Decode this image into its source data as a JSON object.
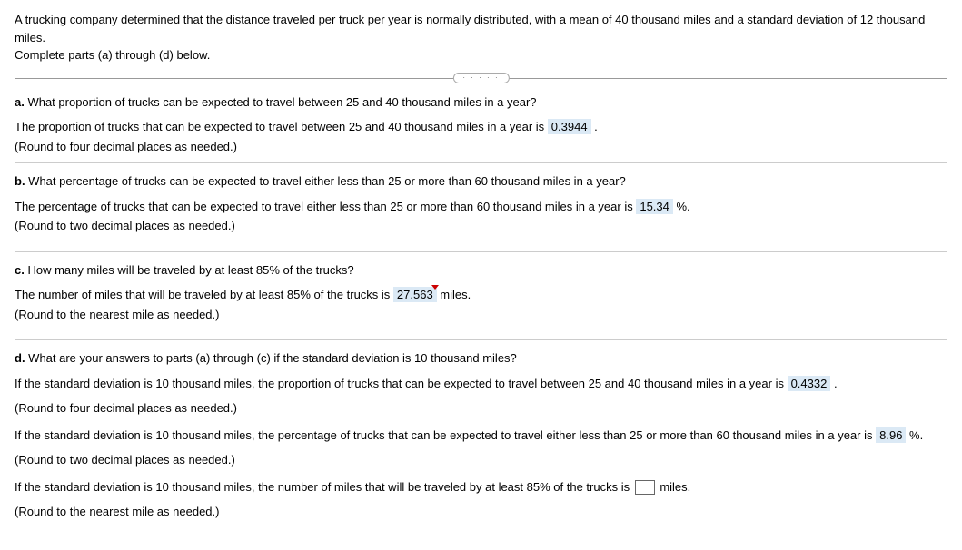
{
  "intro": {
    "line1": "A trucking company determined that the distance traveled per truck per year is normally distributed, with a mean of 40 thousand miles and a standard deviation of 12 thousand miles.",
    "line2": "Complete parts (a) through (d) below."
  },
  "divider": "· · · · ·",
  "a": {
    "label": "a.",
    "question": " What proportion of trucks can be expected to travel between 25 and 40 thousand miles in a year?",
    "answer_pre": "The proportion of trucks that can be expected to travel between 25 and 40 thousand miles in a year is ",
    "answer_val": "0.3944",
    "answer_post": " .",
    "note": "(Round to four decimal places as needed.)"
  },
  "b": {
    "label": "b.",
    "question": " What percentage of trucks can be expected to travel either less than 25 or more than 60 thousand miles in a year?",
    "answer_pre": "The percentage of trucks that can be expected to travel either less than 25 or more than 60 thousand miles in a year is ",
    "answer_val": "15.34",
    "answer_post": " %.",
    "note": "(Round to two decimal places as needed.)"
  },
  "c": {
    "label": "c.",
    "question": " How many miles will be traveled by at least 85% of the trucks?",
    "answer_pre": "The number of miles that will be traveled by at least 85% of the trucks is ",
    "answer_val": "27,563",
    "answer_post": " miles.",
    "note": "(Round to the nearest mile as needed.)"
  },
  "d": {
    "label": "d.",
    "question": " What are your answers to parts (a) through (c) if the standard deviation is 10 thousand miles?",
    "g1": {
      "answer_pre": "If the standard deviation is 10 thousand miles, the proportion of trucks that can be expected to travel between 25 and 40 thousand miles in a year is ",
      "answer_val": "0.4332",
      "answer_post": " .",
      "note": "(Round to four decimal places as needed.)"
    },
    "g2": {
      "answer_pre": "If the standard deviation is 10 thousand miles, the percentage of trucks that can be expected to travel either less than 25 or more than 60 thousand miles in a year is ",
      "answer_val": "8.96",
      "answer_post": " %.",
      "note": "(Round to two decimal places as needed.)"
    },
    "g3": {
      "answer_pre": "If the standard deviation is 10 thousand miles, the number of miles that will be traveled by at least 85% of the trucks is ",
      "answer_post": " miles.",
      "note": "(Round to the nearest mile as needed.)"
    }
  }
}
